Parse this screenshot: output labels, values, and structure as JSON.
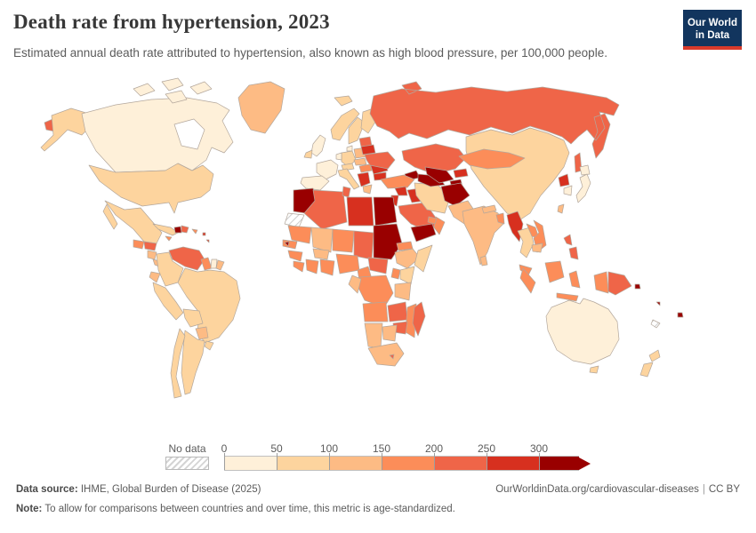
{
  "header": {
    "title": "Death rate from hypertension, 2023",
    "subtitle": "Estimated annual death rate attributed to hypertension, also known as high blood pressure, per 100,000 people."
  },
  "logo": {
    "line1": "Our World",
    "line2": "in Data",
    "bg": "#12355e",
    "accent": "#d93a2b"
  },
  "legend": {
    "no_data_label": "No data",
    "ticks": [
      "0",
      "50",
      "100",
      "150",
      "200",
      "250",
      "300"
    ],
    "bin_ranges": [
      "0-50",
      "50-100",
      "100-150",
      "150-200",
      "200-250",
      "250-300",
      "300+"
    ],
    "bin_colors": [
      "#fef0d9",
      "#fdd49e",
      "#fdbb84",
      "#fc8d59",
      "#ef6548",
      "#d7301f",
      "#990000"
    ]
  },
  "footer": {
    "source_label": "Data source:",
    "source_text": " IHME, Global Burden of Disease (2025)",
    "link_text": "OurWorldinData.org/cardiovascular-diseases",
    "separator": "|",
    "license": "CC BY",
    "note_label": "Note:",
    "note_text": " To allow for comparisons between countries and over time, this metric is age-standardized."
  },
  "map": {
    "ocean": "#ffffff",
    "border_color": "#b3a79c",
    "regions": {
      "chukotka": 4,
      "alaska": 1,
      "canada": 0,
      "canadian-arctic": 0,
      "hudson-bay": "water",
      "greenland": 2,
      "usa": 1,
      "mexico": 1,
      "guatemala": 3,
      "honduras": 4,
      "nicaragua": 2,
      "costa-rica-panama": 2,
      "cuba": 1,
      "haiti": 6,
      "dominican-republic": 4,
      "jamaica": 3,
      "puerto-rico": 3,
      "lesser-antilles": 5,
      "venezuela": 4,
      "colombia": 1,
      "guyana": 3,
      "suriname": 0,
      "french-guiana": 2,
      "ecuador": 2,
      "brazil": 1,
      "peru": 1,
      "bolivia": 1,
      "paraguay": 2,
      "argentina": 1,
      "chile": 1,
      "uruguay": 1,
      "iceland": 1,
      "norway": 1,
      "sweden": 1,
      "finland": 1,
      "denmark": 0,
      "uk": 0,
      "ireland": 1,
      "france": 0,
      "iberia": 0,
      "germany": 1,
      "low-countries": 0,
      "italy": 1,
      "austria": 1,
      "poland": 2,
      "czechia": 2,
      "hungary": 3,
      "balkans": 5,
      "greece": 2,
      "romania": 5,
      "bulgaria": 5,
      "baltics": 4,
      "belarus": 5,
      "ukraine": 4,
      "russia": 4,
      "sakhalin": 4,
      "kazakhstan": 4,
      "caucasus": 6,
      "turkey": 3,
      "syria": 5,
      "iraq": 5,
      "jordan": 5,
      "saudi-arabia": 4,
      "yemen": 6,
      "oman": 3,
      "uae": 3,
      "iran": 1,
      "turkmenistan": 6,
      "uzbekistan": 6,
      "kyrgyzstan": 5,
      "tajikistan": 6,
      "afghanistan": 6,
      "pakistan": 2,
      "india": 2,
      "nepal": 2,
      "sri-lanka": 2,
      "bangladesh": 3,
      "china": 1,
      "mongolia": 3,
      "north-korea": 5,
      "south-korea": 0,
      "japan": 0,
      "taiwan": 2,
      "myanmar": 5,
      "thailand": 1,
      "laos": 3,
      "vietnam": 3,
      "cambodia": 2,
      "malaysia": 3,
      "sumatra": 3,
      "borneo": 3,
      "java": 3,
      "sulawesi": 3,
      "philippines": 4,
      "west-papua": 3,
      "papua-new-guinea": 4,
      "solomon-islands": 6,
      "vanuatu": 6,
      "fiji": 6,
      "new-caledonia": "nodata",
      "australia": 0,
      "tasmania": 1,
      "new-zealand": 1,
      "morocco": 6,
      "western-sahara": "nodata",
      "algeria": 4,
      "tunisia": 4,
      "libya": 5,
      "egypt": 6,
      "mauritania": 3,
      "mali": 2,
      "niger": 3,
      "chad": 4,
      "sudan": 6,
      "senegal": 3,
      "gambia": 6,
      "guinea": 3,
      "sierra-leone": 3,
      "ivory-coast": 3,
      "ghana": 3,
      "burkina-faso": 2,
      "nigeria": 3,
      "cameroon": 3,
      "central-african-republic": 4,
      "ethiopia": 2,
      "somalia": 1,
      "eritrea": 3,
      "kenya": 1,
      "uganda": 3,
      "drc": 3,
      "congo": 2,
      "tanzania": 2,
      "angola": 3,
      "zambia": 4,
      "mozambique": 3,
      "zimbabwe": 4,
      "namibia": 2,
      "botswana": 2,
      "south-africa": 2,
      "lesotho": 4,
      "madagascar": 4
    }
  },
  "chart_data": {
    "type": "choropleth",
    "title": "Death rate from hypertension, 2023",
    "unit": "deaths per 100,000 people",
    "year": 2023,
    "bins": [
      "0-50",
      "50-100",
      "100-150",
      "150-200",
      "200-250",
      "250-300",
      "300+"
    ],
    "bin_colors": [
      "#fef0d9",
      "#fdd49e",
      "#fdbb84",
      "#fc8d59",
      "#ef6548",
      "#d7301f",
      "#990000"
    ],
    "legend_position": "bottom",
    "entities": [
      {
        "name": "Canada",
        "range": "0-50"
      },
      {
        "name": "United States",
        "range": "50-100"
      },
      {
        "name": "Greenland",
        "range": "100-150"
      },
      {
        "name": "Mexico",
        "range": "50-100"
      },
      {
        "name": "Guatemala",
        "range": "150-200"
      },
      {
        "name": "Honduras",
        "range": "200-250"
      },
      {
        "name": "Nicaragua",
        "range": "100-150"
      },
      {
        "name": "Cuba",
        "range": "50-100"
      },
      {
        "name": "Haiti",
        "range": "300+"
      },
      {
        "name": "Dominican Republic",
        "range": "200-250"
      },
      {
        "name": "Venezuela",
        "range": "200-250"
      },
      {
        "name": "Colombia",
        "range": "50-100"
      },
      {
        "name": "Guyana",
        "range": "150-200"
      },
      {
        "name": "Suriname",
        "range": "0-50"
      },
      {
        "name": "Brazil",
        "range": "50-100"
      },
      {
        "name": "Peru",
        "range": "50-100"
      },
      {
        "name": "Bolivia",
        "range": "50-100"
      },
      {
        "name": "Paraguay",
        "range": "100-150"
      },
      {
        "name": "Argentina",
        "range": "50-100"
      },
      {
        "name": "Chile",
        "range": "50-100"
      },
      {
        "name": "United Kingdom",
        "range": "0-50"
      },
      {
        "name": "France",
        "range": "0-50"
      },
      {
        "name": "Spain",
        "range": "0-50"
      },
      {
        "name": "Germany",
        "range": "50-100"
      },
      {
        "name": "Italy",
        "range": "50-100"
      },
      {
        "name": "Norway",
        "range": "50-100"
      },
      {
        "name": "Sweden",
        "range": "50-100"
      },
      {
        "name": "Finland",
        "range": "50-100"
      },
      {
        "name": "Poland",
        "range": "100-150"
      },
      {
        "name": "Ukraine",
        "range": "200-250"
      },
      {
        "name": "Belarus",
        "range": "250-300"
      },
      {
        "name": "Romania",
        "range": "250-300"
      },
      {
        "name": "Bulgaria",
        "range": "250-300"
      },
      {
        "name": "Serbia",
        "range": "250-300"
      },
      {
        "name": "Greece",
        "range": "100-150"
      },
      {
        "name": "Turkey",
        "range": "150-200"
      },
      {
        "name": "Russia",
        "range": "200-250"
      },
      {
        "name": "Kazakhstan",
        "range": "200-250"
      },
      {
        "name": "Uzbekistan",
        "range": "300+"
      },
      {
        "name": "Turkmenistan",
        "range": "300+"
      },
      {
        "name": "Tajikistan",
        "range": "300+"
      },
      {
        "name": "Kyrgyzstan",
        "range": "250-300"
      },
      {
        "name": "Afghanistan",
        "range": "300+"
      },
      {
        "name": "Azerbaijan",
        "range": "300+"
      },
      {
        "name": "Iran",
        "range": "50-100"
      },
      {
        "name": "Iraq",
        "range": "250-300"
      },
      {
        "name": "Syria",
        "range": "250-300"
      },
      {
        "name": "Saudi Arabia",
        "range": "200-250"
      },
      {
        "name": "Yemen",
        "range": "300+"
      },
      {
        "name": "Oman",
        "range": "150-200"
      },
      {
        "name": "Egypt",
        "range": "300+"
      },
      {
        "name": "Libya",
        "range": "250-300"
      },
      {
        "name": "Algeria",
        "range": "200-250"
      },
      {
        "name": "Morocco",
        "range": "300+"
      },
      {
        "name": "Sudan",
        "range": "300+"
      },
      {
        "name": "Mali",
        "range": "100-150"
      },
      {
        "name": "Niger",
        "range": "150-200"
      },
      {
        "name": "Chad",
        "range": "200-250"
      },
      {
        "name": "Nigeria",
        "range": "150-200"
      },
      {
        "name": "Ethiopia",
        "range": "100-150"
      },
      {
        "name": "Somalia",
        "range": "50-100"
      },
      {
        "name": "Kenya",
        "range": "50-100"
      },
      {
        "name": "Democratic Republic of Congo",
        "range": "150-200"
      },
      {
        "name": "Angola",
        "range": "150-200"
      },
      {
        "name": "Zambia",
        "range": "200-250"
      },
      {
        "name": "Zimbabwe",
        "range": "200-250"
      },
      {
        "name": "Mozambique",
        "range": "150-200"
      },
      {
        "name": "South Africa",
        "range": "100-150"
      },
      {
        "name": "Madagascar",
        "range": "200-250"
      },
      {
        "name": "Pakistan",
        "range": "100-150"
      },
      {
        "name": "India",
        "range": "100-150"
      },
      {
        "name": "Bangladesh",
        "range": "150-200"
      },
      {
        "name": "China",
        "range": "50-100"
      },
      {
        "name": "Mongolia",
        "range": "150-200"
      },
      {
        "name": "North Korea",
        "range": "250-300"
      },
      {
        "name": "South Korea",
        "range": "0-50"
      },
      {
        "name": "Japan",
        "range": "0-50"
      },
      {
        "name": "Myanmar",
        "range": "250-300"
      },
      {
        "name": "Thailand",
        "range": "50-100"
      },
      {
        "name": "Vietnam",
        "range": "150-200"
      },
      {
        "name": "Cambodia",
        "range": "100-150"
      },
      {
        "name": "Malaysia",
        "range": "150-200"
      },
      {
        "name": "Indonesia",
        "range": "150-200"
      },
      {
        "name": "Philippines",
        "range": "200-250"
      },
      {
        "name": "Papua New Guinea",
        "range": "200-250"
      },
      {
        "name": "Solomon Islands",
        "range": "300+"
      },
      {
        "name": "Fiji",
        "range": "300+"
      },
      {
        "name": "Australia",
        "range": "0-50"
      },
      {
        "name": "New Zealand",
        "range": "50-100"
      },
      {
        "name": "Western Sahara",
        "range": "No data"
      },
      {
        "name": "New Caledonia",
        "range": "No data"
      }
    ]
  }
}
